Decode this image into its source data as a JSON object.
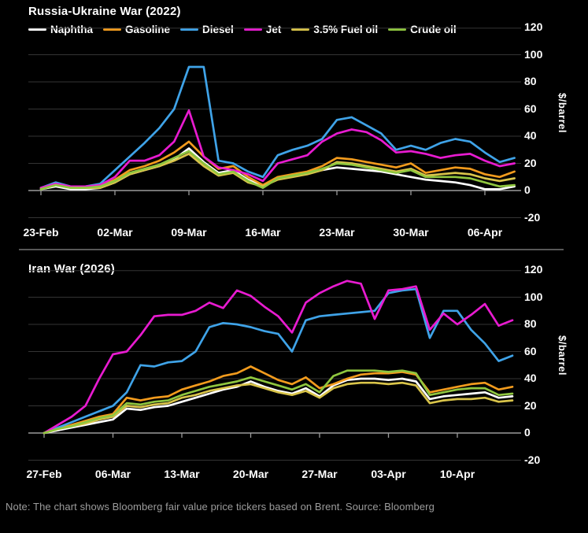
{
  "note": "Note: The chart shows Bloomberg fair value price tickers based on Brent. Source: Bloomberg",
  "colors": {
    "background": "#000000",
    "gridline": "#343434",
    "axis": "#9b9b9b",
    "separator": "#575757",
    "title_text": "#ffffff",
    "note_text": "#9c9c9c"
  },
  "chart_data": [
    {
      "type": "line",
      "title": "Russia-Ukraine War (2022)",
      "ylabel": "$/barrel",
      "ylim": [
        -20,
        120
      ],
      "yticks": [
        120,
        100,
        80,
        60,
        40,
        20,
        0,
        -20
      ],
      "grid": "horizontal",
      "legend_position": "top",
      "x_tick_labels": [
        "23-Feb",
        "02-Mar",
        "09-Mar",
        "16-Mar",
        "23-Mar",
        "30-Mar",
        "06-Apr"
      ],
      "x_tick_indices": [
        0,
        5,
        10,
        15,
        20,
        25,
        30
      ],
      "series": [
        {
          "name": "Naphtha",
          "color": "#ffffff",
          "values": [
            1,
            3,
            1,
            1,
            2,
            6,
            12,
            15,
            18,
            23,
            31,
            21,
            13,
            15,
            8,
            3,
            9,
            11,
            13,
            15,
            17,
            16,
            15,
            14,
            12,
            10,
            8,
            7,
            6,
            4,
            1,
            1,
            3
          ]
        },
        {
          "name": "Gasoline",
          "color": "#f29b1d",
          "values": [
            2,
            5,
            2,
            2,
            3,
            8,
            15,
            18,
            22,
            28,
            36,
            25,
            16,
            18,
            10,
            4,
            10,
            12,
            14,
            18,
            24,
            23,
            21,
            19,
            17,
            20,
            13,
            15,
            17,
            16,
            12,
            10,
            14
          ]
        },
        {
          "name": "Diesel",
          "color": "#3fa3e8",
          "values": [
            2,
            6,
            3,
            3,
            5,
            15,
            25,
            35,
            46,
            60,
            91,
            91,
            22,
            20,
            14,
            10,
            26,
            30,
            33,
            38,
            52,
            54,
            48,
            42,
            30,
            33,
            30,
            35,
            38,
            36,
            28,
            21,
            24
          ]
        },
        {
          "name": "Jet",
          "color": "#e81bd0",
          "values": [
            2,
            5,
            3,
            3,
            4,
            10,
            22,
            22,
            26,
            36,
            59,
            25,
            17,
            15,
            12,
            7,
            20,
            23,
            26,
            36,
            42,
            45,
            43,
            37,
            28,
            29,
            27,
            24,
            26,
            27,
            22,
            18,
            20
          ]
        },
        {
          "name": "3.5% Fuel oil",
          "color": "#d9c44a",
          "values": [
            1,
            4,
            2,
            2,
            2,
            6,
            12,
            15,
            18,
            22,
            27,
            18,
            11,
            13,
            6,
            3,
            8,
            10,
            12,
            15,
            21,
            20,
            18,
            16,
            14,
            16,
            11,
            12,
            13,
            12,
            9,
            7,
            9
          ]
        },
        {
          "name": "Crude oil",
          "color": "#8fc63f",
          "values": [
            1,
            4,
            2,
            2,
            3,
            7,
            13,
            16,
            19,
            24,
            29,
            20,
            12,
            14,
            7,
            2,
            9,
            11,
            13,
            16,
            20,
            19,
            17,
            15,
            13,
            15,
            10,
            10,
            10,
            9,
            6,
            3,
            4
          ]
        }
      ]
    },
    {
      "type": "line",
      "title": "Iran War (2026)",
      "ylabel": "$/barrel",
      "ylim": [
        -20,
        120
      ],
      "yticks": [
        120,
        100,
        80,
        60,
        40,
        20,
        0,
        -20
      ],
      "grid": "horizontal",
      "legend_position": "shared-top",
      "x_tick_labels": [
        "27-Feb",
        "06-Mar",
        "13-Mar",
        "20-Mar",
        "27-Mar",
        "03-Apr",
        "10-Apr"
      ],
      "x_tick_indices": [
        0,
        5,
        10,
        15,
        20,
        25,
        30
      ],
      "series": [
        {
          "name": "Naphtha",
          "color": "#ffffff",
          "values": [
            0,
            2,
            4,
            6,
            8,
            10,
            18,
            17,
            19,
            20,
            23,
            26,
            29,
            32,
            34,
            38,
            34,
            31,
            29,
            33,
            27,
            35,
            39,
            40,
            40,
            39,
            40,
            38,
            25,
            27,
            28,
            29,
            30,
            26,
            27
          ]
        },
        {
          "name": "Gasoline",
          "color": "#f29b1d",
          "values": [
            0,
            3,
            6,
            9,
            12,
            14,
            26,
            24,
            26,
            27,
            32,
            35,
            38,
            42,
            44,
            49,
            44,
            39,
            36,
            41,
            33,
            36,
            40,
            43,
            44,
            44,
            45,
            43,
            30,
            32,
            34,
            36,
            37,
            32,
            34
          ]
        },
        {
          "name": "Diesel",
          "color": "#3fa3e8",
          "values": [
            0,
            4,
            8,
            12,
            16,
            20,
            30,
            50,
            49,
            52,
            53,
            60,
            78,
            81,
            80,
            78,
            75,
            73,
            60,
            83,
            86,
            87,
            88,
            89,
            90,
            103,
            105,
            106,
            70,
            90,
            90,
            76,
            66,
            53,
            57
          ]
        },
        {
          "name": "Jet",
          "color": "#e81bd0",
          "values": [
            0,
            6,
            12,
            20,
            40,
            58,
            60,
            72,
            86,
            87,
            87,
            90,
            96,
            92,
            105,
            101,
            93,
            86,
            74,
            96,
            103,
            108,
            112,
            110,
            84,
            105,
            106,
            108,
            76,
            88,
            80,
            87,
            95,
            79,
            83
          ]
        },
        {
          "name": "3.5% Fuel oil",
          "color": "#d9c44a",
          "values": [
            0,
            3,
            5,
            7,
            10,
            12,
            20,
            19,
            21,
            22,
            26,
            28,
            31,
            33,
            35,
            36,
            33,
            30,
            28,
            31,
            26,
            33,
            36,
            37,
            37,
            36,
            37,
            35,
            22,
            24,
            25,
            25,
            26,
            23,
            24
          ]
        },
        {
          "name": "Crude oil",
          "color": "#8fc63f",
          "values": [
            0,
            3,
            5,
            8,
            11,
            13,
            22,
            21,
            23,
            24,
            28,
            31,
            34,
            36,
            38,
            41,
            38,
            35,
            32,
            36,
            30,
            42,
            46,
            46,
            46,
            45,
            46,
            44,
            28,
            30,
            32,
            33,
            33,
            28,
            29
          ]
        }
      ]
    }
  ]
}
